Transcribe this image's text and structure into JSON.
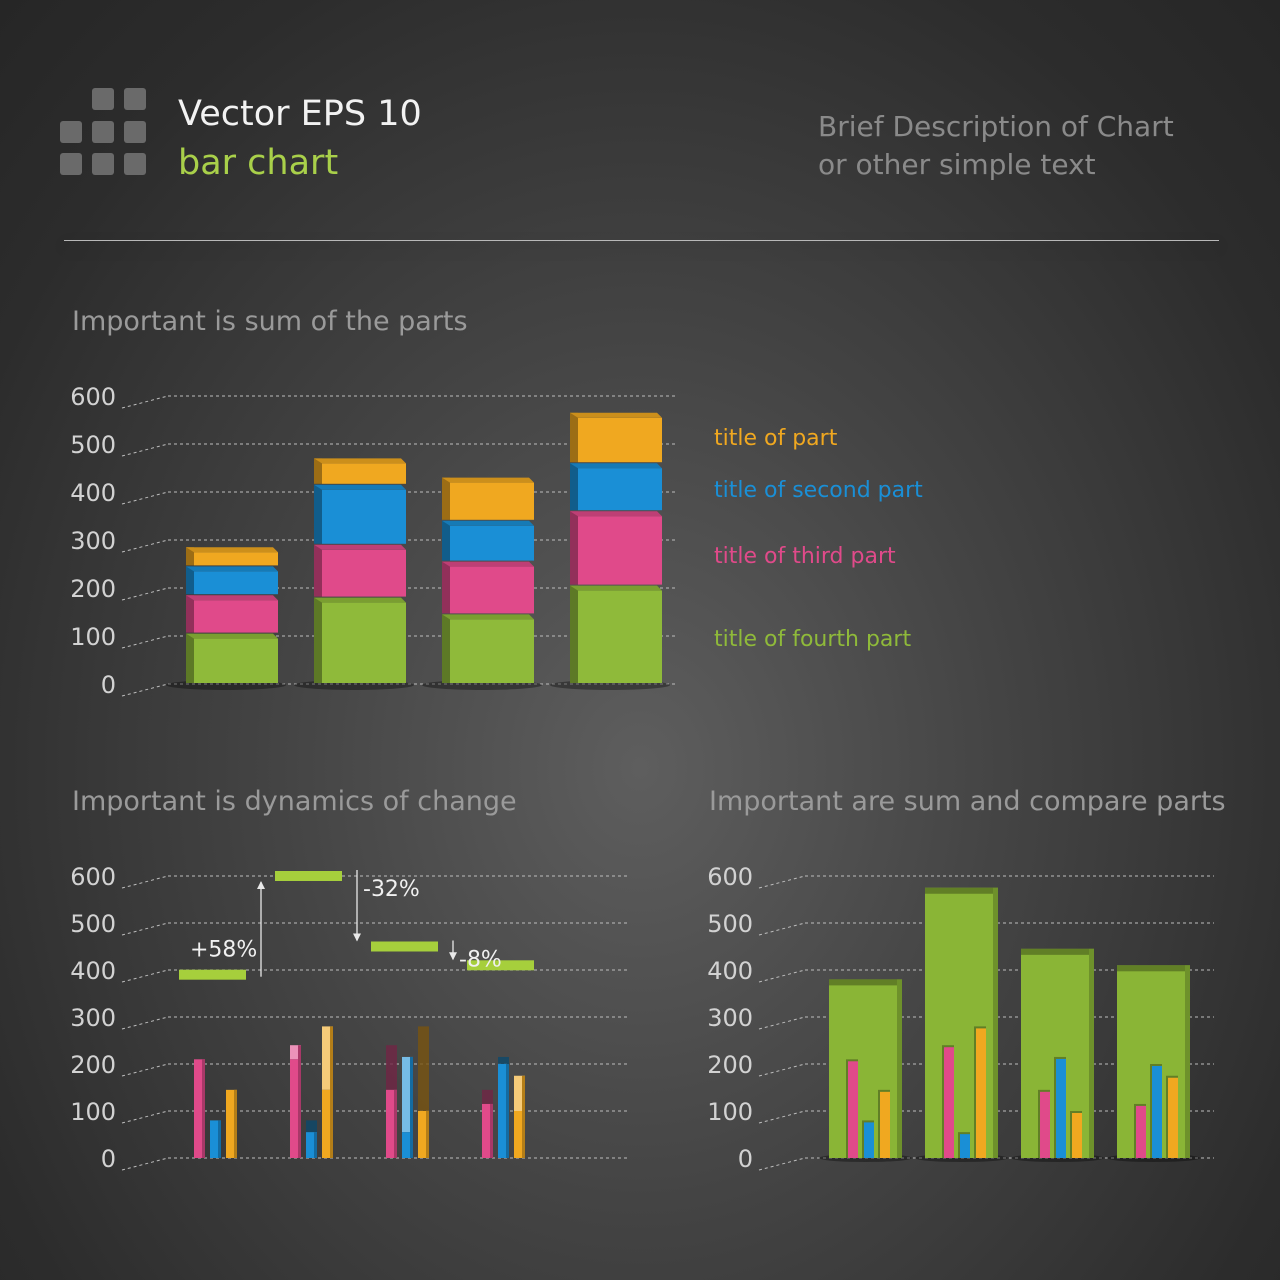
{
  "header": {
    "title": "Vector EPS 10",
    "subtitle": "bar chart",
    "description_line1": "Brief Description of Chart",
    "description_line2": "or other simple text",
    "logo_icon": "grid-squares-icon"
  },
  "colors": {
    "green": "#8fba3a",
    "pink": "#e04a8a",
    "blue": "#1a8fd6",
    "orange": "#f0a820",
    "background": "#3a3a3a"
  },
  "chart_data": [
    {
      "type": "bar",
      "stacked": true,
      "title": "Important is sum of the parts",
      "y_ticks": [
        0,
        100,
        200,
        300,
        400,
        500,
        600
      ],
      "ylim": [
        0,
        600
      ],
      "grid": true,
      "legend_placement": "right",
      "categories": [
        "",
        "",
        "",
        ""
      ],
      "series": [
        {
          "name": "title of fourth part",
          "color": "#8fba3a",
          "values": [
            105,
            180,
            145,
            205
          ]
        },
        {
          "name": "title of third part",
          "color": "#e04a8a",
          "values": [
            80,
            110,
            110,
            155
          ]
        },
        {
          "name": "title of second part",
          "color": "#1a8fd6",
          "values": [
            60,
            125,
            85,
            100
          ]
        },
        {
          "name": "title of part",
          "color": "#f0a820",
          "values": [
            40,
            55,
            90,
            105
          ]
        }
      ]
    },
    {
      "type": "bar",
      "title": "Important is dynamics of change",
      "y_ticks": [
        0,
        100,
        200,
        300,
        400,
        500,
        600
      ],
      "ylim": [
        0,
        600
      ],
      "grid": true,
      "categories": [
        "",
        "",
        "",
        ""
      ],
      "series": [
        {
          "name": "",
          "color": "#e04a8a",
          "values": [
            210,
            240,
            145,
            115
          ]
        },
        {
          "name": "",
          "color": "#1a8fd6",
          "values": [
            80,
            55,
            215,
            200
          ]
        },
        {
          "name": "",
          "color": "#f0a820",
          "values": [
            145,
            280,
            100,
            175
          ]
        }
      ],
      "totals": [
        390,
        600,
        450,
        410
      ],
      "changes": [
        "+58%",
        "-32%",
        "-8%"
      ]
    },
    {
      "type": "bar",
      "title": "Important are sum and compare parts",
      "y_ticks": [
        0,
        100,
        200,
        300,
        400,
        500,
        600
      ],
      "ylim": [
        0,
        600
      ],
      "grid": true,
      "categories": [
        "",
        "",
        "",
        ""
      ],
      "totals": [
        380,
        575,
        445,
        410
      ],
      "series": [
        {
          "name": "",
          "color": "#e04a8a",
          "values": [
            210,
            240,
            145,
            115
          ]
        },
        {
          "name": "",
          "color": "#1a8fd6",
          "values": [
            80,
            55,
            215,
            200
          ]
        },
        {
          "name": "",
          "color": "#f0a820",
          "values": [
            145,
            280,
            100,
            175
          ]
        }
      ]
    }
  ]
}
